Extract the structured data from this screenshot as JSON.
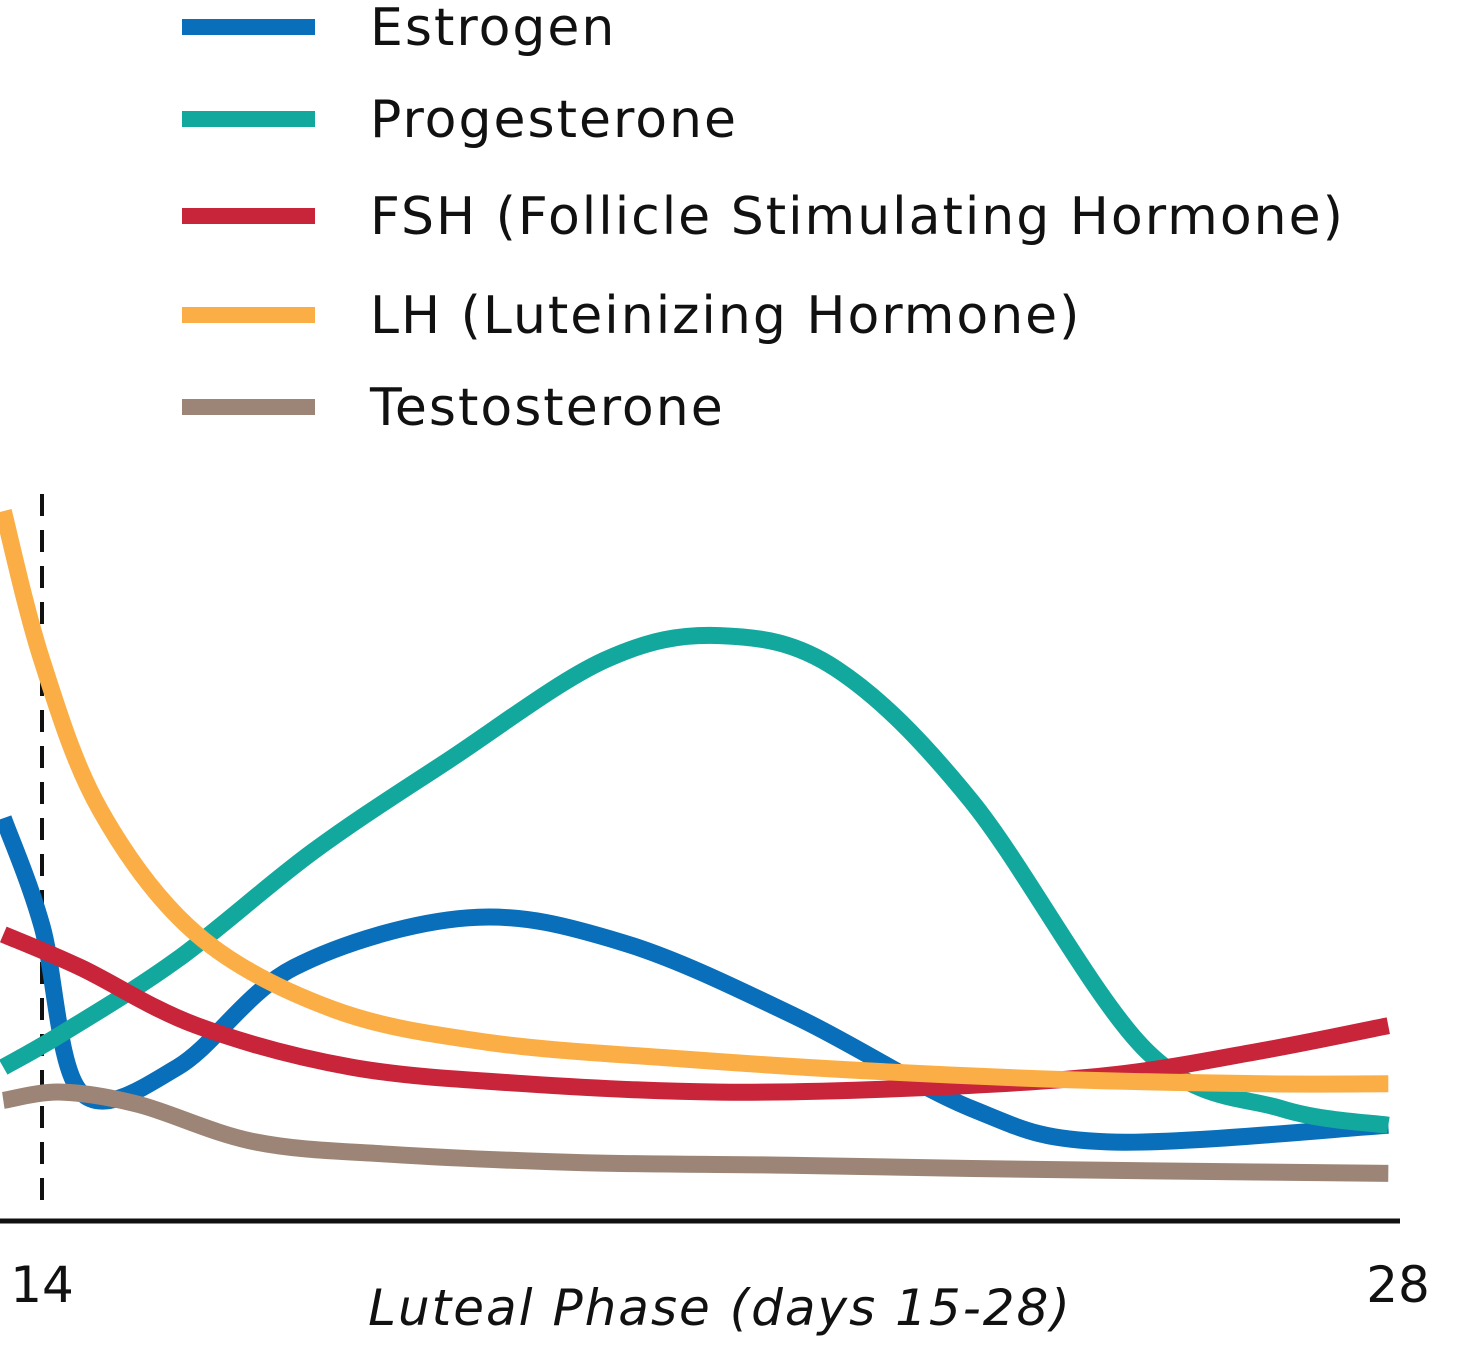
{
  "chart_data": {
    "type": "line",
    "xlabel": "Luteal Phase (days 15-28)",
    "x_ticks": [
      "14",
      "28"
    ],
    "xlim": [
      14,
      28
    ],
    "ylim": [
      0,
      100
    ],
    "grid": false,
    "legend_position": "top",
    "ovulation_marker_day": 14,
    "series": [
      {
        "name": "Estrogen",
        "color": "#0a6fba",
        "points": [
          [
            13.6,
            46
          ],
          [
            14.0,
            33
          ],
          [
            14.4,
            13
          ],
          [
            15.4,
            16
          ],
          [
            16.6,
            28
          ],
          [
            18.4,
            34
          ],
          [
            20.0,
            31
          ],
          [
            21.8,
            22
          ],
          [
            23.6,
            11
          ],
          [
            25.0,
            7
          ],
          [
            27.9,
            9
          ]
        ]
      },
      {
        "name": "Progesterone",
        "color": "#13a89e",
        "points": [
          [
            13.6,
            16
          ],
          [
            14.2,
            20
          ],
          [
            15.4,
            29
          ],
          [
            16.8,
            42
          ],
          [
            18.2,
            53
          ],
          [
            19.8,
            65
          ],
          [
            21.0,
            68
          ],
          [
            22.2,
            64
          ],
          [
            23.6,
            48
          ],
          [
            25.4,
            18
          ],
          [
            26.8,
            11
          ],
          [
            27.9,
            9
          ]
        ]
      },
      {
        "name": "FSH (Follicle Stimulating Hormone)",
        "color": "#c8243a",
        "points": [
          [
            13.6,
            32
          ],
          [
            14.4,
            28
          ],
          [
            15.6,
            21
          ],
          [
            17.2,
            16
          ],
          [
            19.0,
            14
          ],
          [
            21.0,
            13
          ],
          [
            23.0,
            13.5
          ],
          [
            25.0,
            15
          ],
          [
            26.6,
            18
          ],
          [
            27.9,
            21
          ]
        ]
      },
      {
        "name": "LH (Luteinizing Hormone)",
        "color": "#fbae45",
        "points": [
          [
            13.6,
            83
          ],
          [
            14.0,
            65
          ],
          [
            14.6,
            47
          ],
          [
            15.6,
            32
          ],
          [
            17.0,
            23
          ],
          [
            18.6,
            19
          ],
          [
            20.6,
            17
          ],
          [
            22.6,
            15.5
          ],
          [
            24.6,
            14.5
          ],
          [
            26.6,
            14
          ],
          [
            27.9,
            14
          ]
        ]
      },
      {
        "name": "Testosterone",
        "color": "#9c8577",
        "points": [
          [
            13.6,
            12
          ],
          [
            14.2,
            13
          ],
          [
            15.0,
            11.5
          ],
          [
            16.2,
            7
          ],
          [
            17.6,
            5.5
          ],
          [
            19.6,
            4.5
          ],
          [
            21.6,
            4.2
          ],
          [
            23.6,
            3.8
          ],
          [
            25.6,
            3.5
          ],
          [
            27.9,
            3.2
          ]
        ]
      }
    ]
  }
}
